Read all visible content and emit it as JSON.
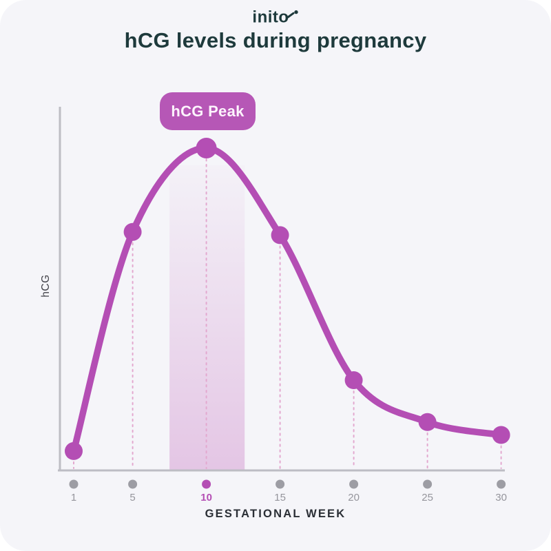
{
  "logo": {
    "text": "inito"
  },
  "title": "hCG levels during pregnancy",
  "peak_label": "hCG Peak",
  "colors": {
    "accent": "#b44eb4",
    "badge": "#b657b6",
    "ink": "#1e3a3c",
    "background": "#f5f5f9",
    "band": "#c878c3",
    "guide": "#e3a8cf",
    "axis": "#bdbdc4",
    "tick": "#9d9da4",
    "tick_label": "#95959c",
    "xlabel_ink": "#2b2f36"
  },
  "chart_data": {
    "type": "line",
    "x": [
      1,
      5,
      10,
      15,
      20,
      25,
      30
    ],
    "tick_labels": [
      "1",
      "5",
      "10",
      "15",
      "20",
      "25",
      "30"
    ],
    "values": [
      6,
      74,
      100,
      73,
      28,
      15,
      11
    ],
    "value_note": "relative hCG level, 100 = peak (chart shows no numeric y-axis)",
    "title": "hCG levels during pregnancy",
    "xlabel": "GESTATIONAL WEEK",
    "ylabel": "hCG",
    "xlim": [
      0,
      31
    ],
    "ylim": [
      0,
      105
    ],
    "grid": false,
    "legend": false,
    "highlighted_week": 10,
    "highlight_band_weeks": [
      7.5,
      12.6
    ],
    "annotations": [
      "hCG Peak"
    ]
  }
}
